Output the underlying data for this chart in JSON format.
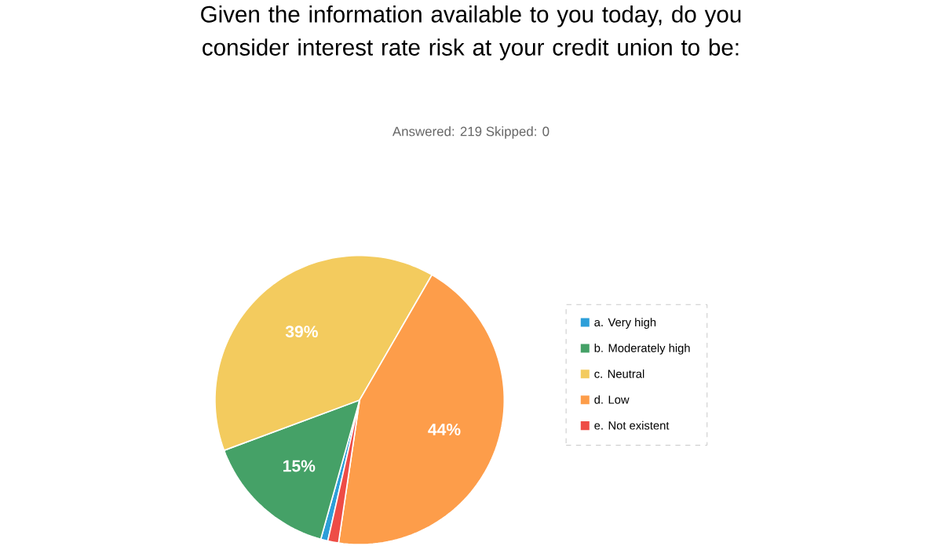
{
  "chart_data": {
    "type": "pie",
    "title": "Given the information available to you today, do you consider interest rate risk at your credit union to be:",
    "subtitle": "Answered: 219    Skipped: 0",
    "categories": [
      "a. Very high",
      "b. Moderately high",
      "c. Neutral",
      "d. Low",
      "e. Not existent"
    ],
    "values": [
      0.8,
      15,
      39,
      44,
      1.2
    ],
    "colors": [
      "#2d9fd9",
      "#45a167",
      "#f3cb5e",
      "#fd9d4a",
      "#ee4c46"
    ],
    "value_labels": [
      null,
      "15%",
      "39%",
      "44%",
      null
    ],
    "legend": "right"
  }
}
